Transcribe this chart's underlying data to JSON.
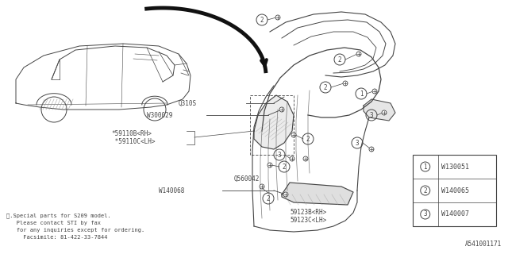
{
  "bg_color": "#ffffff",
  "dark_color": "#444444",
  "gray_color": "#999999",
  "light_gray": "#cccccc",
  "part_numbers": [
    {
      "num": "1",
      "code": "W130051"
    },
    {
      "num": "2",
      "code": "W140065"
    },
    {
      "num": "3",
      "code": "W140007"
    }
  ],
  "diagram_id": "A541001171",
  "footer_text": "※.Special parts for S209 model.\n   Please contact STI by fax\n   for any inquiries except for ordering.\n     Facsimile: 81-422-33-7844",
  "label_Q310S": "Q310S",
  "label_W300029": "W300029",
  "label_59110B": "*59110B<RH>",
  "label_59110C": " *59110C<LH>",
  "label_Q560042": "Q560042",
  "label_W140068": "W140068",
  "label_59123B": "59123B<RH>",
  "label_59123C": "59123C<LH>"
}
